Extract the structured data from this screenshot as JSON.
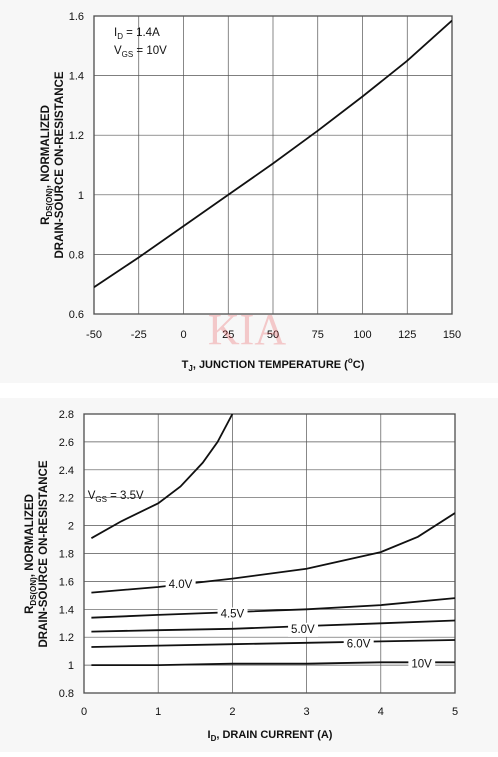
{
  "watermark": "KIA",
  "chart_data": [
    {
      "type": "line",
      "xlabel": {
        "pre": "T",
        "sub": "J",
        "mid": ", JUNCTION TEMPERATURE (",
        "sup": "o",
        "post": "C)"
      },
      "ylabel": {
        "line1_pre": "R",
        "line1_sub": "DS(ON)",
        "line1_post": ", NORMALIZED",
        "line2": "DRAIN-SOURCE ON-RESISTANCE"
      },
      "xlim": [
        -50,
        150
      ],
      "ylim": [
        0.6,
        1.6
      ],
      "x_ticks": [
        "-50",
        "-25",
        "0",
        "25",
        "50",
        "75",
        "100",
        "125",
        "150"
      ],
      "y_ticks": [
        "0.6",
        "0.8",
        "1",
        "1.2",
        "1.4",
        "1.6"
      ],
      "grid": true,
      "annotations": [
        {
          "pre": "I",
          "sub": "D",
          "post": " = 1.4A"
        },
        {
          "pre": "V",
          "sub": "GS",
          "post": " = 10V"
        }
      ],
      "series": [
        {
          "x": [
            -50,
            -25,
            0,
            25,
            50,
            75,
            100,
            125,
            150
          ],
          "y": [
            0.69,
            0.79,
            0.895,
            1.0,
            1.105,
            1.215,
            1.33,
            1.45,
            1.585
          ]
        }
      ]
    },
    {
      "type": "line",
      "xlabel": {
        "pre": "I",
        "sub": "D",
        "post": ", DRAIN CURRENT (A)"
      },
      "ylabel": {
        "line1_pre": "R",
        "line1_sub": "DS(ON)",
        "line1_post": ", NORMALIZED",
        "line2": "DRAIN-SOURCE ON-RESISTANCE"
      },
      "xlim": [
        0,
        5
      ],
      "ylim": [
        0.8,
        2.8
      ],
      "x_ticks": [
        "0",
        "1",
        "2",
        "3",
        "4",
        "5"
      ],
      "y_ticks": [
        "0.8",
        "1",
        "1.2",
        "1.4",
        "1.6",
        "1.8",
        "2",
        "2.2",
        "2.4",
        "2.6",
        "2.8"
      ],
      "grid": true,
      "series": [
        {
          "name_pre": "V",
          "name_sub": "GS",
          "name_post": " = 3.5V",
          "x": [
            0.1,
            0.5,
            1.0,
            1.3,
            1.6,
            1.8,
            2.0
          ],
          "y": [
            1.91,
            2.03,
            2.16,
            2.28,
            2.45,
            2.6,
            2.8
          ]
        },
        {
          "name": "4.0V",
          "x": [
            0.1,
            1.0,
            2.0,
            3.0,
            4.0,
            4.5,
            5.0
          ],
          "y": [
            1.52,
            1.56,
            1.62,
            1.69,
            1.81,
            1.92,
            2.09
          ]
        },
        {
          "name": "4.5V",
          "x": [
            0.1,
            1.0,
            2.0,
            3.0,
            4.0,
            5.0
          ],
          "y": [
            1.34,
            1.36,
            1.38,
            1.4,
            1.43,
            1.48
          ]
        },
        {
          "name": "5.0V",
          "x": [
            0.1,
            1.0,
            2.0,
            3.0,
            4.0,
            5.0
          ],
          "y": [
            1.24,
            1.25,
            1.26,
            1.28,
            1.3,
            1.32
          ]
        },
        {
          "name": "6.0V",
          "x": [
            0.1,
            1.0,
            2.0,
            3.0,
            4.0,
            5.0
          ],
          "y": [
            1.13,
            1.14,
            1.15,
            1.16,
            1.17,
            1.18
          ]
        },
        {
          "name": "10V",
          "x": [
            0.1,
            1.0,
            2.0,
            3.0,
            4.0,
            5.0
          ],
          "y": [
            1.0,
            1.0,
            1.01,
            1.01,
            1.02,
            1.02
          ]
        }
      ]
    }
  ]
}
